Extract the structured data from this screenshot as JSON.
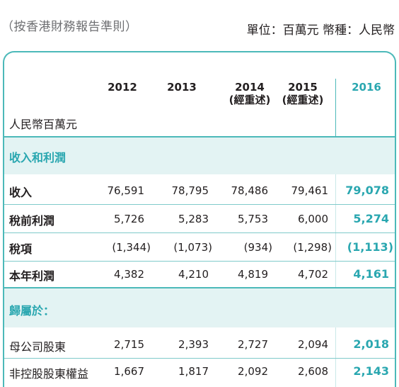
{
  "header_left": "（按香港財務報告準則）",
  "header_right": "單位：百萬元  幣種：人民幣",
  "table": {
    "unit_label": "人民幣百萬元",
    "columns": [
      {
        "line1": "2012",
        "line2": ""
      },
      {
        "line1": "2013",
        "line2": ""
      },
      {
        "line1": "2014",
        "line2": "(經重述)"
      },
      {
        "line1": "2015",
        "line2": "(經重述)"
      },
      {
        "line1": "2016",
        "line2": ""
      }
    ],
    "section1_title": "收入和利潤",
    "section1_rows": [
      {
        "label": "收入",
        "values": [
          "76,591",
          "78,795",
          "78,486",
          "79,461",
          "79,078"
        ]
      },
      {
        "label": "稅前利潤",
        "values": [
          "5,726",
          "5,283",
          "5,753",
          "6,000",
          "5,274"
        ]
      },
      {
        "label": "稅項",
        "values": [
          "(1,344)",
          "(1,073)",
          "(934)",
          "(1,298)",
          "(1,113)"
        ]
      },
      {
        "label": "本年利潤",
        "values": [
          "4,382",
          "4,210",
          "4,819",
          "4,702",
          "4,161"
        ]
      }
    ],
    "section2_title": "歸屬於：",
    "section2_rows": [
      {
        "label": "母公司股東",
        "values": [
          "2,715",
          "2,393",
          "2,727",
          "2,094",
          "2,018"
        ]
      },
      {
        "label": "非控股股東權益",
        "values": [
          "1,667",
          "1,817",
          "2,092",
          "2,608",
          "2,143"
        ]
      }
    ]
  },
  "colors": {
    "accent": "#2aa7b0",
    "band": "#e3f3f3",
    "border": "#4cb9b9"
  }
}
